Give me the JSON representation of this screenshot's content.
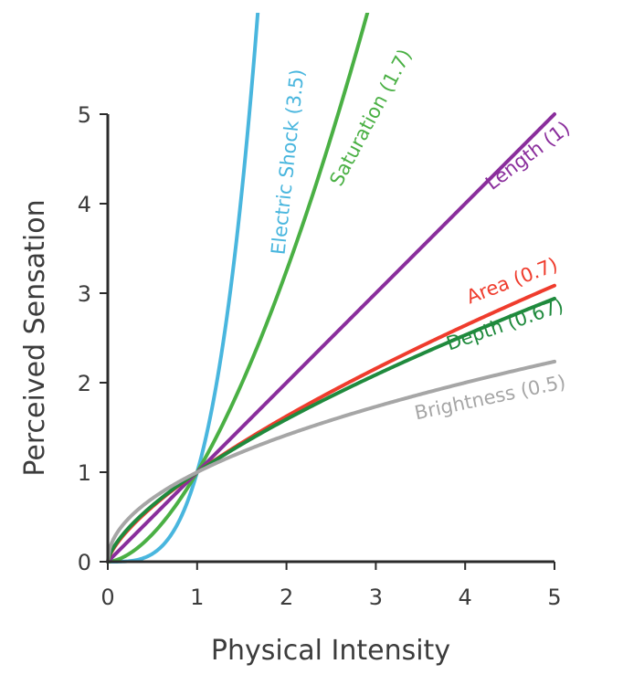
{
  "chart_data": {
    "type": "line",
    "title": "",
    "xlabel": "Physical Intensity",
    "ylabel": "Perceived Sensation",
    "xlim": [
      0,
      5
    ],
    "ylim": [
      0,
      5
    ],
    "xticks": [
      "0",
      "1",
      "2",
      "3",
      "4",
      "5"
    ],
    "yticks": [
      "0",
      "1",
      "2",
      "3",
      "4",
      "5"
    ],
    "grid": false,
    "legend": "none",
    "series": [
      {
        "name": "Electric Shock (3.5)",
        "exponent": 3.5,
        "color": "#49b6de"
      },
      {
        "name": "Saturation (1.7)",
        "exponent": 1.7,
        "color": "#4ab044"
      },
      {
        "name": "Length (1)",
        "exponent": 1.0,
        "color": "#8a2e9c"
      },
      {
        "name": "Area (0.7)",
        "exponent": 0.7,
        "color": "#ef3c2d"
      },
      {
        "name": "Depth (0.67)",
        "exponent": 0.67,
        "color": "#1f8a3d"
      },
      {
        "name": "Brightness (0.5)",
        "exponent": 0.5,
        "color": "#a6a6a6"
      }
    ]
  }
}
